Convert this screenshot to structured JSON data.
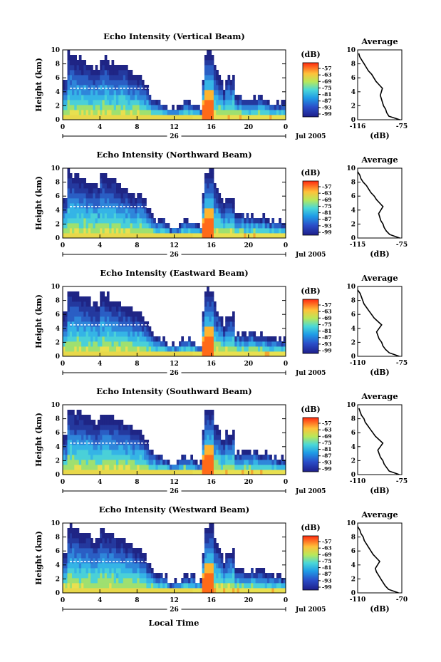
{
  "chart_data": [
    {
      "type": "heatmap",
      "title": "Echo Intensity (Vertical Beam)",
      "ylabel": "Height (km)",
      "ylim": [
        0,
        10
      ],
      "y_ticks": [
        "0",
        "2",
        "4",
        "6",
        "8",
        "10"
      ],
      "x_ticks": [
        "0",
        "4",
        "8",
        "12",
        "16",
        "20",
        "0"
      ],
      "date_label": "26",
      "month_label": "Jul 2005",
      "colorbar": {
        "unit": "(dB)",
        "ticks": [
          "-57",
          "-63",
          "-69",
          "-75",
          "-81",
          "-87",
          "-93",
          "-99"
        ]
      },
      "profile": {
        "title": "Average",
        "xlabel": "(dB)",
        "xlim": [
          -116,
          -75
        ],
        "x_ticks": [
          "-116",
          "-75"
        ],
        "y_ticks": [
          "0",
          "2",
          "4",
          "6",
          "8",
          "10"
        ],
        "heights": [
          0,
          0.5,
          1,
          1.5,
          2,
          2.5,
          3,
          3.5,
          4,
          4.5,
          5,
          5.5,
          6,
          6.5,
          7,
          7.5,
          8,
          8.5,
          9,
          9.5
        ],
        "values": [
          -77,
          -87,
          -89,
          -90,
          -92,
          -93,
          -94,
          -95,
          -94,
          -93,
          -96,
          -99,
          -101,
          -103,
          -106,
          -108,
          -110,
          -112,
          -114,
          -115
        ]
      }
    },
    {
      "type": "heatmap",
      "title": "Echo Intensity (Northward Beam)",
      "ylabel": "Height (km)",
      "ylim": [
        0,
        10
      ],
      "y_ticks": [
        "0",
        "2",
        "4",
        "6",
        "8",
        "10"
      ],
      "x_ticks": [
        "0",
        "4",
        "8",
        "12",
        "16",
        "20",
        "0"
      ],
      "date_label": "26",
      "month_label": "Jul 2005",
      "colorbar": {
        "unit": "(dB)",
        "ticks": [
          "-57",
          "-63",
          "-69",
          "-75",
          "-81",
          "-87",
          "-93",
          "-99"
        ]
      },
      "profile": {
        "title": "Average",
        "xlabel": "(dB)",
        "xlim": [
          -115,
          -75
        ],
        "x_ticks": [
          "-115",
          "-75"
        ],
        "y_ticks": [
          "0",
          "2",
          "4",
          "6",
          "8",
          "10"
        ],
        "heights": [
          0,
          0.5,
          1,
          1.5,
          2,
          2.5,
          3,
          3.5,
          4,
          4.5,
          5,
          5.5,
          6,
          6.5,
          7,
          7.5,
          8,
          8.5,
          9,
          9.5
        ],
        "values": [
          -77,
          -86,
          -89,
          -91,
          -92,
          -94,
          -95,
          -96,
          -94,
          -92,
          -95,
          -98,
          -100,
          -103,
          -105,
          -107,
          -110,
          -112,
          -113,
          -115
        ]
      }
    },
    {
      "type": "heatmap",
      "title": "Echo Intensity (Eastward Beam)",
      "ylabel": "Height (km)",
      "ylim": [
        0,
        10
      ],
      "y_ticks": [
        "0",
        "2",
        "4",
        "6",
        "8",
        "10"
      ],
      "x_ticks": [
        "0",
        "4",
        "8",
        "12",
        "16",
        "20",
        "0"
      ],
      "date_label": "26",
      "month_label": "Jul 2005",
      "colorbar": {
        "unit": "(dB)",
        "ticks": [
          "-57",
          "-63",
          "-69",
          "-75",
          "-81",
          "-87",
          "-93",
          "-99"
        ]
      },
      "profile": {
        "title": "Average",
        "xlabel": "(dB)",
        "xlim": [
          -110,
          -75
        ],
        "x_ticks": [
          "-110",
          "-75"
        ],
        "y_ticks": [
          "0",
          "2",
          "4",
          "6",
          "8",
          "10"
        ],
        "heights": [
          0,
          0.5,
          1,
          1.5,
          2,
          2.5,
          3,
          3.5,
          4,
          4.5,
          5,
          5.5,
          6,
          6.5,
          7,
          7.5,
          8,
          8.5,
          9,
          9.5
        ],
        "values": [
          -77,
          -85,
          -88,
          -90,
          -91,
          -93,
          -94,
          -95,
          -93,
          -91,
          -94,
          -97,
          -99,
          -101,
          -103,
          -105,
          -106,
          -107,
          -108,
          -110
        ]
      }
    },
    {
      "type": "heatmap",
      "title": "Echo Intensity (Southward Beam)",
      "ylabel": "Height (km)",
      "ylim": [
        0,
        10
      ],
      "y_ticks": [
        "0",
        "2",
        "4",
        "6",
        "8",
        "10"
      ],
      "x_ticks": [
        "0",
        "4",
        "8",
        "12",
        "16",
        "20",
        "0"
      ],
      "date_label": "26",
      "month_label": "Jul 2005",
      "colorbar": {
        "unit": "(dB)",
        "ticks": [
          "-57",
          "-63",
          "-69",
          "-75",
          "-81",
          "-87",
          "-93",
          "-99"
        ]
      },
      "profile": {
        "title": "Average",
        "xlabel": "(dB)",
        "xlim": [
          -110,
          -75
        ],
        "x_ticks": [
          "-110",
          "-75"
        ],
        "y_ticks": [
          "0",
          "2",
          "4",
          "6",
          "8",
          "10"
        ],
        "heights": [
          0,
          0.5,
          1,
          1.5,
          2,
          2.5,
          3,
          3.5,
          4,
          4.5,
          5,
          5.5,
          6,
          6.5,
          7,
          7.5,
          8,
          8.5,
          9,
          9.5
        ],
        "values": [
          -77,
          -85,
          -87,
          -89,
          -90,
          -92,
          -93,
          -94,
          -92,
          -90,
          -93,
          -96,
          -98,
          -100,
          -102,
          -104,
          -105,
          -107,
          -108,
          -109
        ]
      }
    },
    {
      "type": "heatmap",
      "title": "Echo Intensity (Westward Beam)",
      "ylabel": "Height (km)",
      "ylim": [
        0,
        10
      ],
      "y_ticks": [
        "0",
        "2",
        "4",
        "6",
        "8",
        "10"
      ],
      "x_ticks": [
        "0",
        "4",
        "8",
        "12",
        "16",
        "20",
        "0"
      ],
      "date_label": "26",
      "month_label": "Jul 2005",
      "colorbar": {
        "unit": "(dB)",
        "ticks": [
          "-57",
          "-63",
          "-69",
          "-75",
          "-81",
          "-87",
          "-93",
          "-99"
        ]
      },
      "profile": {
        "title": "Average",
        "xlabel": "(dB)",
        "xlim": [
          -110,
          -70
        ],
        "x_ticks": [
          "-110",
          "-70"
        ],
        "y_ticks": [
          "0",
          "2",
          "4",
          "6",
          "8",
          "10"
        ],
        "heights": [
          0,
          0.5,
          1,
          1.5,
          2,
          2.5,
          3,
          3.5,
          4,
          4.5,
          5,
          5.5,
          6,
          6.5,
          7,
          7.5,
          8,
          8.5,
          9,
          9.5
        ],
        "values": [
          -73,
          -82,
          -85,
          -87,
          -89,
          -91,
          -93,
          -94,
          -92,
          -90,
          -93,
          -96,
          -98,
          -100,
          -102,
          -104,
          -105,
          -107,
          -108,
          -110
        ]
      }
    }
  ],
  "figure": {
    "xlabel": "Local Time",
    "colors": {
      "low": "#1c1f8c",
      "mid": "#37c8e6",
      "high": "#ff3c10"
    }
  }
}
